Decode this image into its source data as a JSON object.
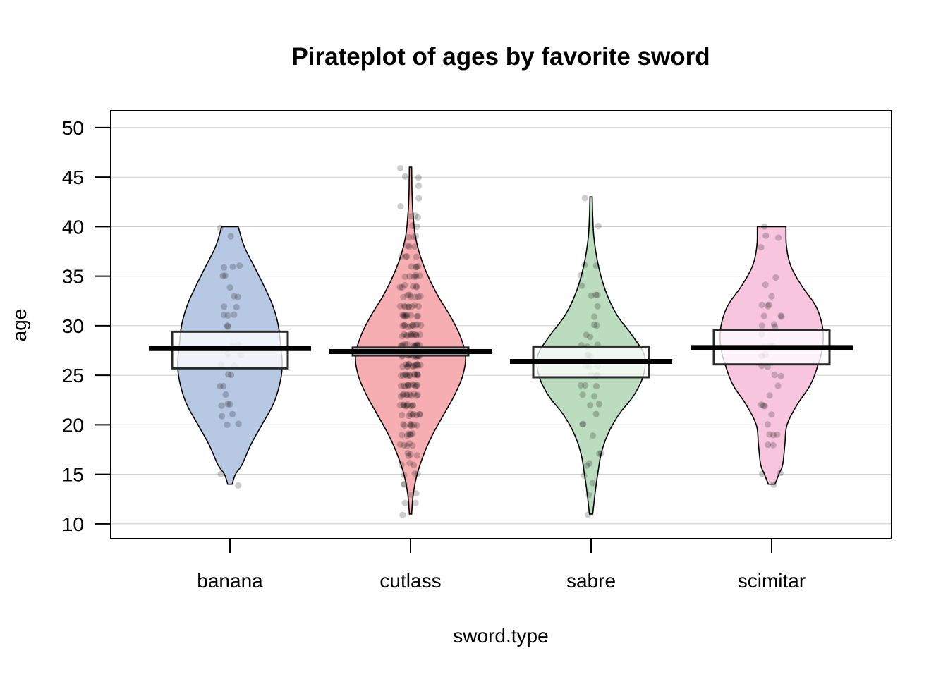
{
  "chart_data": {
    "type": "pirateplot",
    "title": "Pirateplot of ages by favorite sword",
    "xlabel": "sword.type",
    "ylabel": "age",
    "ylim": [
      8.5,
      51.7
    ],
    "yticks": [
      10,
      15,
      20,
      25,
      30,
      35,
      40,
      45,
      50
    ],
    "grid": true,
    "categories": [
      "banana",
      "cutlass",
      "sabre",
      "scimitar"
    ],
    "series": [
      {
        "category": "banana",
        "color": "#b7c8e3",
        "mean": 27.7,
        "ci": [
          25.7,
          29.4
        ],
        "min": 14,
        "max": 40,
        "density": [
          [
            14,
            0.04
          ],
          [
            15,
            0.1
          ],
          [
            16,
            0.22
          ],
          [
            18,
            0.38
          ],
          [
            20,
            0.58
          ],
          [
            22,
            0.78
          ],
          [
            24,
            0.9
          ],
          [
            26,
            0.95
          ],
          [
            28,
            0.92
          ],
          [
            30,
            0.88
          ],
          [
            32,
            0.78
          ],
          [
            34,
            0.62
          ],
          [
            36,
            0.44
          ],
          [
            38,
            0.26
          ],
          [
            40,
            0.15
          ]
        ],
        "points": [
          14,
          15,
          20,
          20,
          21,
          21,
          22,
          22,
          22,
          23,
          24,
          24,
          25,
          25,
          26,
          26,
          27,
          27,
          28,
          28,
          30,
          30,
          31,
          31,
          31,
          32,
          32,
          33,
          33,
          34,
          35,
          35,
          36,
          36,
          36,
          39,
          40
        ]
      },
      {
        "category": "cutlass",
        "color": "#f7aeb3",
        "mean": 27.4,
        "ci": [
          27.0,
          27.8
        ],
        "min": 11,
        "max": 46,
        "density": [
          [
            11,
            0.02
          ],
          [
            13,
            0.05
          ],
          [
            15,
            0.12
          ],
          [
            17,
            0.24
          ],
          [
            19,
            0.4
          ],
          [
            21,
            0.6
          ],
          [
            23,
            0.8
          ],
          [
            25,
            0.95
          ],
          [
            27,
            1.0
          ],
          [
            29,
            0.9
          ],
          [
            31,
            0.72
          ],
          [
            33,
            0.5
          ],
          [
            35,
            0.32
          ],
          [
            37,
            0.18
          ],
          [
            39,
            0.09
          ],
          [
            41,
            0.05
          ],
          [
            43,
            0.03
          ],
          [
            46,
            0.02
          ]
        ],
        "points": [
          11,
          12,
          12,
          13,
          13,
          14,
          14,
          15,
          15,
          15,
          16,
          16,
          16,
          17,
          17,
          17,
          17,
          18,
          18,
          18,
          18,
          18,
          19,
          19,
          19,
          19,
          19,
          19,
          20,
          20,
          20,
          20,
          20,
          20,
          20,
          21,
          21,
          21,
          21,
          21,
          21,
          21,
          21,
          22,
          22,
          22,
          22,
          22,
          22,
          22,
          22,
          22,
          23,
          23,
          23,
          23,
          23,
          23,
          23,
          23,
          23,
          23,
          24,
          24,
          24,
          24,
          24,
          24,
          24,
          24,
          24,
          24,
          24,
          25,
          25,
          25,
          25,
          25,
          25,
          25,
          25,
          25,
          25,
          25,
          25,
          26,
          26,
          26,
          26,
          26,
          26,
          26,
          26,
          26,
          26,
          26,
          26,
          26,
          27,
          27,
          27,
          27,
          27,
          27,
          27,
          27,
          27,
          27,
          27,
          27,
          27,
          28,
          28,
          28,
          28,
          28,
          28,
          28,
          28,
          28,
          28,
          28,
          28,
          29,
          29,
          29,
          29,
          29,
          29,
          29,
          29,
          29,
          29,
          29,
          30,
          30,
          30,
          30,
          30,
          30,
          30,
          30,
          30,
          30,
          31,
          31,
          31,
          31,
          31,
          31,
          31,
          31,
          31,
          32,
          32,
          32,
          32,
          32,
          32,
          32,
          32,
          33,
          33,
          33,
          33,
          33,
          33,
          33,
          34,
          34,
          34,
          34,
          34,
          34,
          35,
          35,
          35,
          35,
          35,
          35,
          36,
          36,
          36,
          36,
          37,
          37,
          37,
          37,
          38,
          38,
          38,
          39,
          39,
          39,
          40,
          40,
          41,
          41,
          41,
          42,
          43,
          44,
          45,
          45,
          46
        ]
      },
      {
        "category": "sabre",
        "color": "#bcdcbf",
        "mean": 26.4,
        "ci": [
          24.8,
          27.9
        ],
        "min": 11,
        "max": 43,
        "density": [
          [
            11,
            0.03
          ],
          [
            13,
            0.07
          ],
          [
            15,
            0.12
          ],
          [
            17,
            0.18
          ],
          [
            19,
            0.3
          ],
          [
            21,
            0.5
          ],
          [
            23,
            0.78
          ],
          [
            25,
            0.95
          ],
          [
            27,
            0.97
          ],
          [
            29,
            0.75
          ],
          [
            31,
            0.48
          ],
          [
            33,
            0.3
          ],
          [
            35,
            0.18
          ],
          [
            37,
            0.1
          ],
          [
            39,
            0.05
          ],
          [
            41,
            0.03
          ],
          [
            43,
            0.02
          ]
        ],
        "points": [
          11,
          13,
          14,
          15,
          16,
          16,
          17,
          17,
          19,
          20,
          20,
          21,
          22,
          22,
          23,
          23,
          24,
          24,
          24,
          25,
          25,
          25,
          26,
          26,
          26,
          27,
          27,
          27,
          28,
          28,
          28,
          29,
          29,
          30,
          30,
          31,
          32,
          33,
          33,
          33,
          34,
          35,
          36,
          36,
          40,
          43
        ]
      },
      {
        "category": "scimitar",
        "color": "#f7c6de",
        "mean": 27.8,
        "ci": [
          26.1,
          29.6
        ],
        "min": 14,
        "max": 40,
        "density": [
          [
            14,
            0.06
          ],
          [
            15,
            0.13
          ],
          [
            16,
            0.2
          ],
          [
            18,
            0.24
          ],
          [
            20,
            0.28
          ],
          [
            22,
            0.46
          ],
          [
            24,
            0.7
          ],
          [
            26,
            0.84
          ],
          [
            28,
            0.93
          ],
          [
            30,
            0.92
          ],
          [
            32,
            0.8
          ],
          [
            34,
            0.55
          ],
          [
            36,
            0.35
          ],
          [
            38,
            0.27
          ],
          [
            40,
            0.26
          ]
        ],
        "points": [
          14,
          15,
          15,
          18,
          18,
          19,
          19,
          19,
          20,
          21,
          22,
          22,
          22,
          23,
          24,
          25,
          25,
          26,
          26,
          27,
          27,
          28,
          28,
          28,
          29,
          30,
          30,
          30,
          31,
          31,
          31,
          32,
          32,
          32,
          33,
          34,
          35,
          38,
          39,
          39,
          40
        ]
      }
    ]
  }
}
